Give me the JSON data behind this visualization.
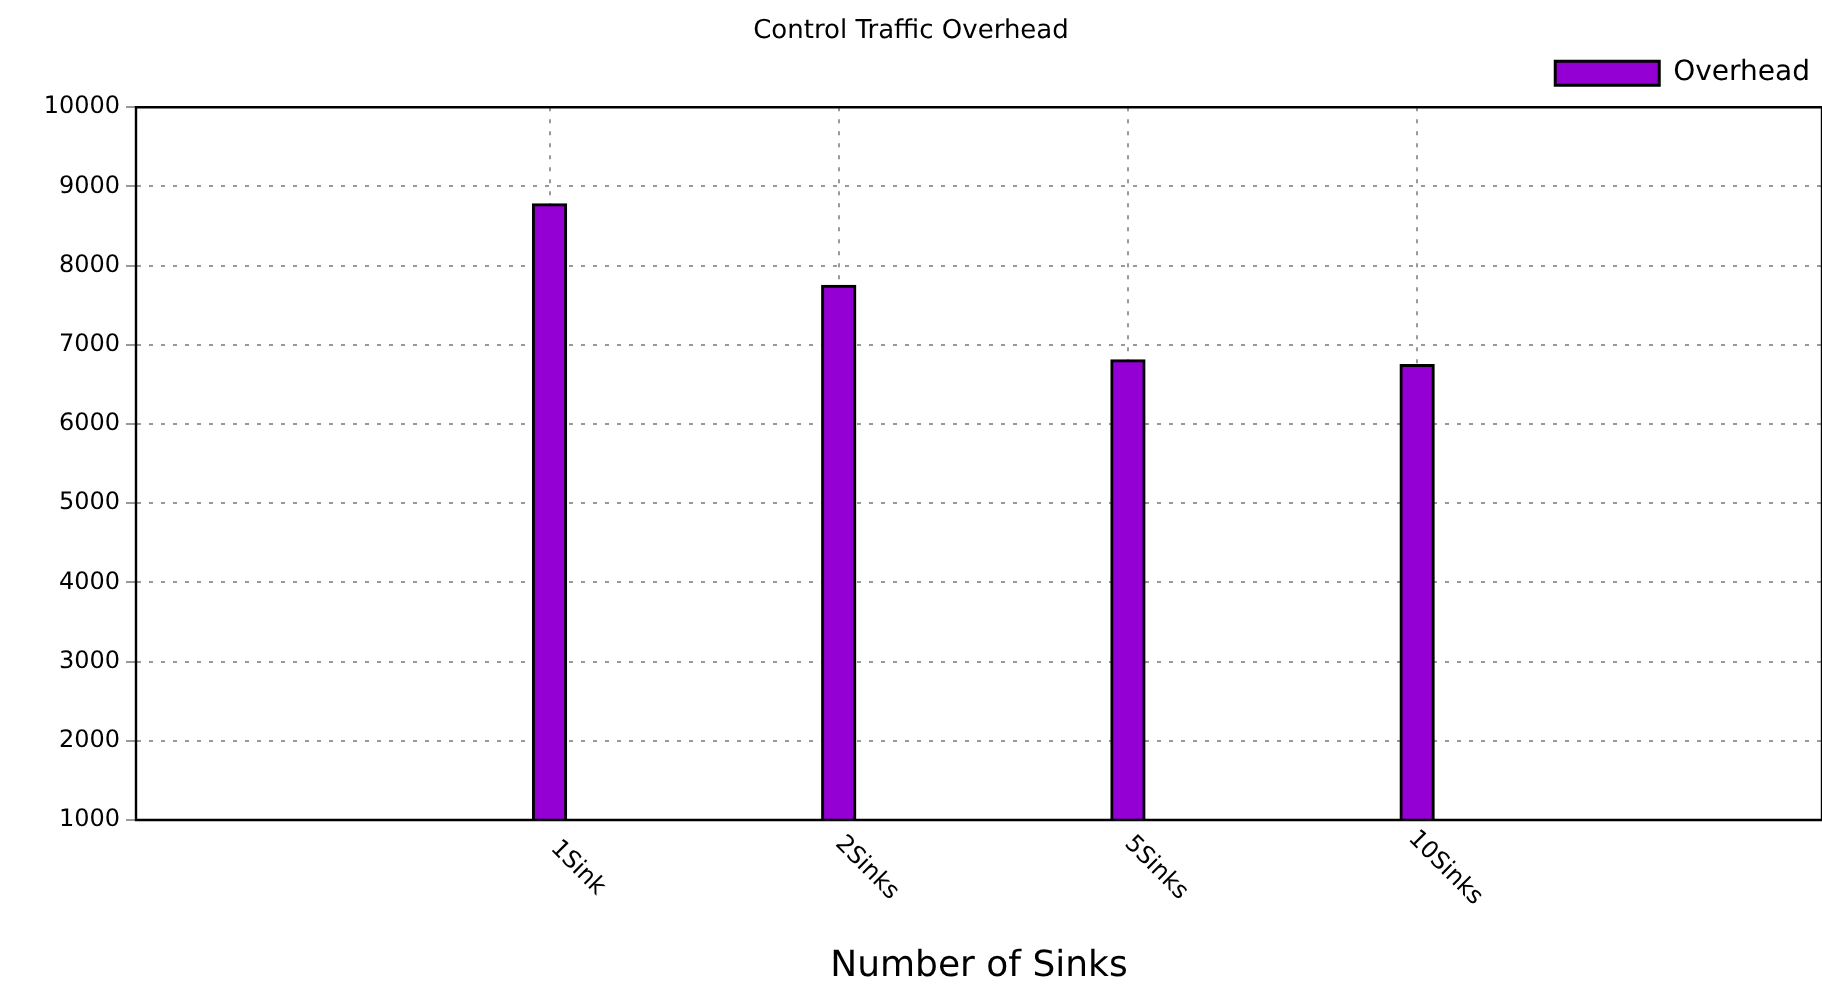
{
  "chart_data": {
    "type": "bar",
    "title": "Control Traffic Overhead",
    "xlabel": "Number of Sinks",
    "categories": [
      "1Sink",
      "2Sinks",
      "5Sinks",
      "10Sinks"
    ],
    "series": [
      {
        "name": "Overhead",
        "color": "#9400d3",
        "values": [
          8780,
          7750,
          6810,
          6750
        ]
      }
    ],
    "ylim": [
      1000,
      10000
    ],
    "yticks": [
      1000,
      2000,
      3000,
      4000,
      5000,
      6000,
      7000,
      8000,
      9000,
      10000
    ],
    "grid": true,
    "legend": "top right"
  }
}
